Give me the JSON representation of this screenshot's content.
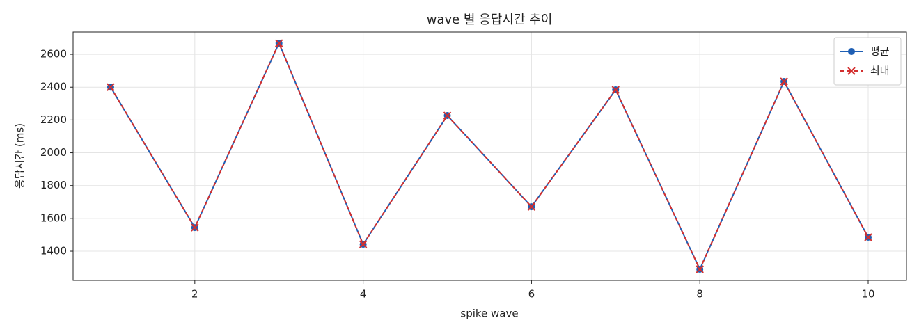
{
  "chart_data": {
    "type": "line",
    "title": "wave 별 응답시간 추이",
    "xlabel": "spike wave",
    "ylabel": "응답시간 (ms)",
    "x": [
      1,
      2,
      3,
      4,
      5,
      6,
      7,
      8,
      9,
      10
    ],
    "series": [
      {
        "name": "평균",
        "color": "#1f5fb4",
        "marker": "o",
        "dashed": false,
        "values": [
          2400,
          1544,
          2668,
          1442,
          2227,
          1671,
          2384,
          1290,
          2435,
          1485
        ]
      },
      {
        "name": "최대",
        "color": "#d32f2f",
        "marker": "x",
        "dashed": true,
        "values": [
          2400,
          1544,
          2668,
          1442,
          2227,
          1671,
          2384,
          1290,
          2435,
          1485
        ]
      }
    ],
    "xlim": [
      0.554,
      10.455
    ],
    "ylim": [
      1222,
      2736
    ],
    "xticks": [
      2,
      4,
      6,
      8,
      10
    ],
    "yticks": [
      1400,
      1600,
      1800,
      2000,
      2200,
      2400,
      2600
    ],
    "grid": true,
    "legend": "upper right"
  }
}
